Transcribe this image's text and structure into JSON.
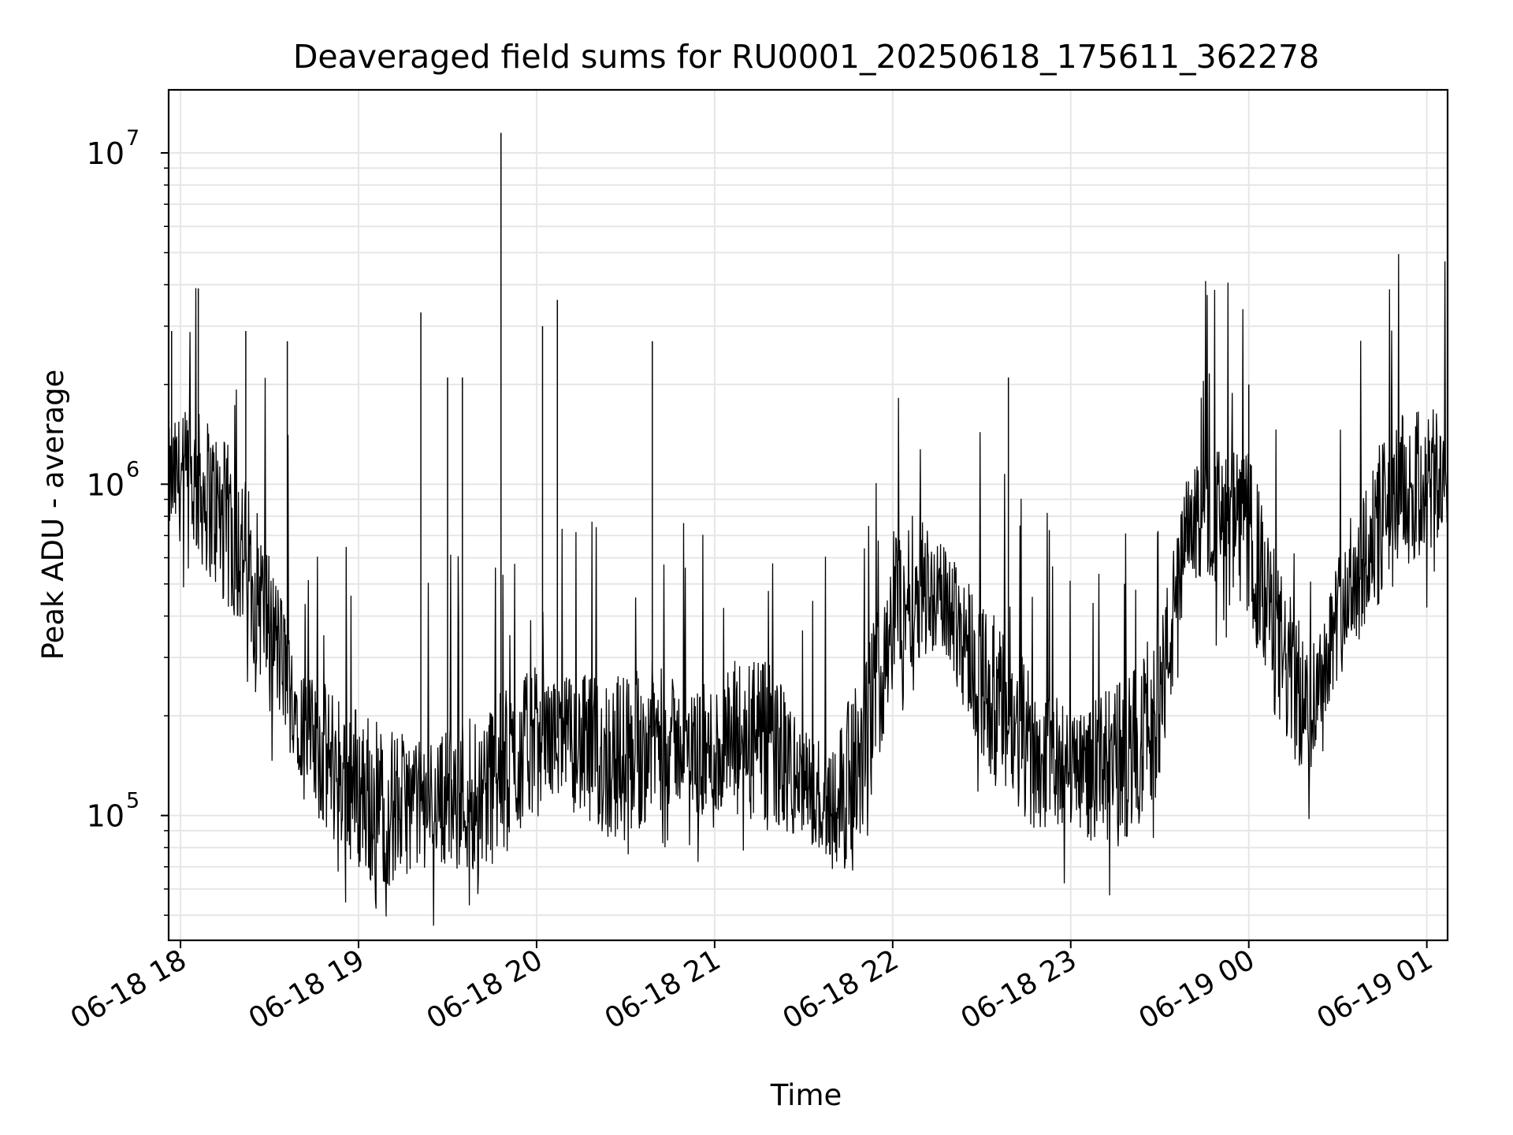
{
  "chart_data": {
    "type": "line",
    "title": "Deaveraged field sums for RU0001_20250618_175611_362278",
    "xlabel": "Time",
    "ylabel": "Peak ADU - average",
    "yscale": "log",
    "xlim": [
      "2025-06-18 17:56",
      "2025-06-19 01:07"
    ],
    "ylim": [
      42000,
      15500000
    ],
    "grid": true,
    "colors": {
      "line": "#000000",
      "grid": "#e6e6e6",
      "background": "#ffffff"
    },
    "x_ticks": [
      {
        "value": "2025-06-18 18:00",
        "label": "06-18 18"
      },
      {
        "value": "2025-06-18 19:00",
        "label": "06-18 19"
      },
      {
        "value": "2025-06-18 20:00",
        "label": "06-18 20"
      },
      {
        "value": "2025-06-18 21:00",
        "label": "06-18 21"
      },
      {
        "value": "2025-06-18 22:00",
        "label": "06-18 22"
      },
      {
        "value": "2025-06-18 23:00",
        "label": "06-18 23"
      },
      {
        "value": "2025-06-19 00:00",
        "label": "06-19 00"
      },
      {
        "value": "2025-06-19 01:00",
        "label": "06-19 01"
      }
    ],
    "y_ticks": [
      {
        "value": 100000,
        "base": "10",
        "exp": "5"
      },
      {
        "value": 1000000,
        "base": "10",
        "exp": "6"
      },
      {
        "value": 10000000,
        "base": "10",
        "exp": "7"
      }
    ],
    "series": [
      {
        "x": [
          "2025-06-18 17:56",
          "2025-06-18 18:00",
          "2025-06-18 18:05",
          "2025-06-18 18:10",
          "2025-06-18 18:15",
          "2025-06-18 18:20",
          "2025-06-18 18:25",
          "2025-06-18 18:30",
          "2025-06-18 18:35",
          "2025-06-18 18:40",
          "2025-06-18 18:45",
          "2025-06-18 18:50",
          "2025-06-18 18:55",
          "2025-06-18 19:00",
          "2025-06-18 19:10",
          "2025-06-18 19:20",
          "2025-06-18 19:30",
          "2025-06-18 19:40",
          "2025-06-18 19:50",
          "2025-06-18 20:00",
          "2025-06-18 20:10",
          "2025-06-18 20:20",
          "2025-06-18 20:30",
          "2025-06-18 20:40",
          "2025-06-18 20:50",
          "2025-06-18 21:00",
          "2025-06-18 21:10",
          "2025-06-18 21:20",
          "2025-06-18 21:30",
          "2025-06-18 21:40",
          "2025-06-18 21:50",
          "2025-06-18 22:00",
          "2025-06-18 22:10",
          "2025-06-18 22:20",
          "2025-06-18 22:30",
          "2025-06-18 22:40",
          "2025-06-18 22:50",
          "2025-06-18 23:00",
          "2025-06-18 23:10",
          "2025-06-18 23:20",
          "2025-06-18 23:30",
          "2025-06-18 23:40",
          "2025-06-18 23:50",
          "2025-06-19 00:00",
          "2025-06-19 00:10",
          "2025-06-19 00:20",
          "2025-06-19 00:30",
          "2025-06-19 00:40",
          "2025-06-19 00:50",
          "2025-06-19 01:00",
          "2025-06-19 01:07"
        ],
        "y": [
          1000000,
          1050000,
          1000000,
          900000,
          750000,
          650000,
          500000,
          380000,
          280000,
          200000,
          160000,
          145000,
          135000,
          120000,
          105000,
          110000,
          115000,
          120000,
          135000,
          175000,
          170000,
          150000,
          150000,
          175000,
          160000,
          150000,
          170000,
          160000,
          120000,
          110000,
          150000,
          430000,
          500000,
          420000,
          260000,
          180000,
          150000,
          140000,
          135000,
          150000,
          220000,
          750000,
          800000,
          700000,
          320000,
          200000,
          400000,
          650000,
          900000,
          1000000,
          1050000
        ]
      }
    ],
    "spikes": [
      {
        "x": "2025-06-18 17:57",
        "y": 2900000
      },
      {
        "x": "2025-06-18 18:06",
        "y": 3900000
      },
      {
        "x": "2025-06-18 18:22",
        "y": 2900000
      },
      {
        "x": "2025-06-18 18:36",
        "y": 2700000
      },
      {
        "x": "2025-06-18 19:21",
        "y": 3300000
      },
      {
        "x": "2025-06-18 19:30",
        "y": 2100000
      },
      {
        "x": "2025-06-18 19:35",
        "y": 2100000
      },
      {
        "x": "2025-06-18 19:48",
        "y": 11500000
      },
      {
        "x": "2025-06-18 20:02",
        "y": 3000000
      },
      {
        "x": "2025-06-18 20:07",
        "y": 3600000
      },
      {
        "x": "2025-06-18 20:39",
        "y": 2700000
      },
      {
        "x": "2025-06-18 22:39",
        "y": 2100000
      },
      {
        "x": "2025-06-19 00:00",
        "y": 2000000
      }
    ]
  }
}
